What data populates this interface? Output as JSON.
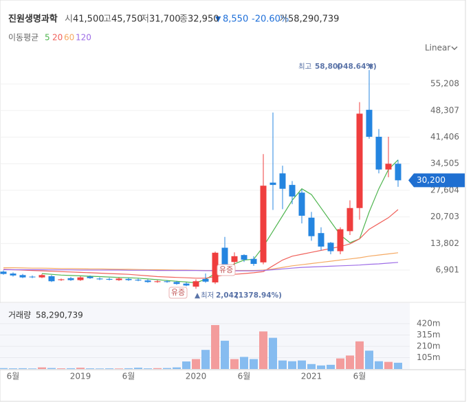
{
  "header": {
    "name": "진원생명과학",
    "items": [
      {
        "label": "시",
        "value": "41,500"
      },
      {
        "label": "고",
        "value": "45,750"
      },
      {
        "label": "저",
        "value": "31,700"
      },
      {
        "label": "종",
        "value": "32,950"
      }
    ],
    "change": "8,550",
    "change_pct": "-20.60%",
    "volume_label": "거",
    "volume": "58,290,739",
    "ma_title": "이동평균",
    "scale": "Linear"
  },
  "chart_data": {
    "type": "candlestick",
    "categories": [
      null,
      "6월",
      null,
      null,
      null,
      null,
      null,
      null,
      "2019",
      null,
      null,
      null,
      null,
      "6월",
      null,
      null,
      null,
      null,
      null,
      null,
      "2020",
      null,
      null,
      null,
      null,
      "6월",
      null,
      null,
      null,
      null,
      null,
      null,
      "2021",
      null,
      null,
      null,
      null,
      "6월",
      null,
      null,
      null,
      null
    ],
    "open": [
      6500,
      6000,
      5600,
      5200,
      5000,
      5300,
      4300,
      4800,
      4300,
      5200,
      4700,
      4600,
      4300,
      4600,
      4400,
      4200,
      3800,
      4000,
      3800,
      3400,
      2600,
      4600,
      3700,
      12700,
      9000,
      10800,
      9800,
      8900,
      29600,
      32000,
      29000,
      27000,
      20500,
      16500,
      14000,
      11800,
      17000,
      23000,
      48500,
      41500,
      33000,
      34500
    ],
    "high": [
      6800,
      6300,
      5900,
      5500,
      5900,
      5600,
      4700,
      5100,
      5300,
      5500,
      5000,
      4900,
      5000,
      4900,
      4700,
      4500,
      4300,
      4300,
      4100,
      3700,
      4500,
      6000,
      11700,
      15500,
      11500,
      11000,
      10500,
      37000,
      47800,
      34000,
      30000,
      27800,
      22000,
      18000,
      14200,
      18000,
      25000,
      50500,
      58800,
      43500,
      41500,
      35500
    ],
    "low": [
      5700,
      5200,
      4800,
      4800,
      4800,
      3800,
      4100,
      4100,
      4100,
      4600,
      4300,
      4200,
      4100,
      4100,
      4000,
      3600,
      3600,
      3600,
      3100,
      2700,
      2042,
      3600,
      3300,
      7600,
      8000,
      9000,
      8000,
      8400,
      22500,
      22700,
      24000,
      19000,
      14500,
      12000,
      11000,
      11000,
      16000,
      20000,
      41000,
      32000,
      31000,
      28500
    ],
    "close": [
      5900,
      5500,
      5000,
      5100,
      5600,
      4000,
      4500,
      4300,
      5000,
      4800,
      4500,
      4400,
      4700,
      4300,
      4200,
      3800,
      4000,
      3800,
      3300,
      2900,
      4000,
      3900,
      11400,
      8200,
      10500,
      9600,
      8500,
      28800,
      29000,
      28000,
      26000,
      21000,
      15700,
      13000,
      11800,
      17500,
      23000,
      47500,
      41500,
      33000,
      34500,
      30200
    ],
    "up_color": "#ef3e3e",
    "down_color": "#2485e0",
    "ma": [
      {
        "name": "5",
        "color": "#4fb54f",
        "values": [
          null,
          null,
          null,
          null,
          6000,
          5800,
          5600,
          5500,
          5400,
          5300,
          5200,
          5100,
          5000,
          4900,
          4800,
          4600,
          4400,
          4200,
          4000,
          3800,
          3600,
          4500,
          6000,
          7500,
          8500,
          9500,
          9700,
          13000,
          17000,
          21000,
          25000,
          28000,
          26500,
          23000,
          19500,
          16000,
          14000,
          15000,
          22000,
          28000,
          33000,
          35500
        ]
      },
      {
        "name": "20",
        "color": "#f0605a",
        "values": [
          7100,
          7000,
          6900,
          6800,
          6700,
          6600,
          6500,
          6400,
          6300,
          6200,
          6100,
          6000,
          5900,
          5800,
          5600,
          5400,
          5200,
          5100,
          5000,
          4900,
          4800,
          4800,
          5200,
          5600,
          5800,
          6000,
          6200,
          6500,
          8000,
          9500,
          10500,
          11000,
          11500,
          12000,
          12500,
          13000,
          13700,
          15000,
          17500,
          19000,
          20500,
          22600
        ]
      },
      {
        "name": "60",
        "color": "#f5a962",
        "values": [
          7500,
          7500,
          7450,
          7400,
          7400,
          7350,
          7300,
          7300,
          7250,
          7200,
          7200,
          7150,
          7100,
          7100,
          7050,
          7000,
          7000,
          6950,
          6900,
          6900,
          6850,
          6800,
          6800,
          6800,
          6800,
          6800,
          6800,
          6900,
          7200,
          7600,
          8000,
          8300,
          8600,
          8900,
          9200,
          9500,
          9800,
          10100,
          10500,
          10800,
          11100,
          11400
        ]
      },
      {
        "name": "120",
        "color": "#9d6ce6",
        "values": [
          7000,
          7000,
          7000,
          7000,
          7000,
          6950,
          6950,
          6950,
          6900,
          6900,
          6900,
          6900,
          6900,
          6850,
          6850,
          6850,
          6800,
          6800,
          6800,
          6800,
          6800,
          6750,
          6750,
          6700,
          6700,
          6700,
          6700,
          6800,
          7000,
          7200,
          7400,
          7600,
          7700,
          7800,
          7900,
          8000,
          8100,
          8200,
          8400,
          8500,
          8700,
          8900
        ]
      }
    ],
    "ylim": [
      0,
      60000
    ],
    "yticks": [
      {
        "value": 6901,
        "label": "6,901"
      },
      {
        "value": 13802,
        "label": "13,802"
      },
      {
        "value": 20703,
        "label": "20,703"
      },
      {
        "value": 27604,
        "label": "27,604"
      },
      {
        "value": 34505,
        "label": "34,505"
      },
      {
        "value": 41406,
        "label": "41,406"
      },
      {
        "value": 48307,
        "label": "48,307"
      },
      {
        "value": 55208,
        "label": "55,208"
      }
    ],
    "grid": true,
    "current_price": {
      "value": 30200,
      "label": "30,200"
    },
    "max_annotation": {
      "label": "최고",
      "value": "58,800",
      "pct": "(-48.64%)"
    },
    "min_annotation": {
      "label": "최저",
      "value": "2,042",
      "pct": "(1378.94%)"
    },
    "events": [
      "유증",
      "유증"
    ],
    "volume": {
      "title": "거래량",
      "total": "58,290,739",
      "values": [
        8000000,
        6000000,
        7000000,
        5000000,
        15000000,
        9000000,
        6000000,
        7000000,
        12000000,
        6000000,
        5000000,
        6000000,
        5000000,
        7000000,
        12000000,
        6000000,
        8000000,
        9000000,
        15000000,
        70000000,
        92000000,
        177000000,
        407000000,
        262000000,
        92000000,
        112000000,
        92000000,
        348000000,
        289000000,
        79000000,
        72000000,
        79000000,
        46000000,
        33000000,
        39000000,
        98000000,
        125000000,
        256000000,
        170000000,
        72000000,
        66000000,
        58000000
      ],
      "up_color": "#f39c9c",
      "down_color": "#86bcf0",
      "ylim": [
        0,
        560000000
      ],
      "yticks": [
        {
          "value": 105000000,
          "label": "105m"
        },
        {
          "value": 210000000,
          "label": "210m"
        },
        {
          "value": 315000000,
          "label": "315m"
        },
        {
          "value": 420000000,
          "label": "420m"
        }
      ]
    }
  }
}
